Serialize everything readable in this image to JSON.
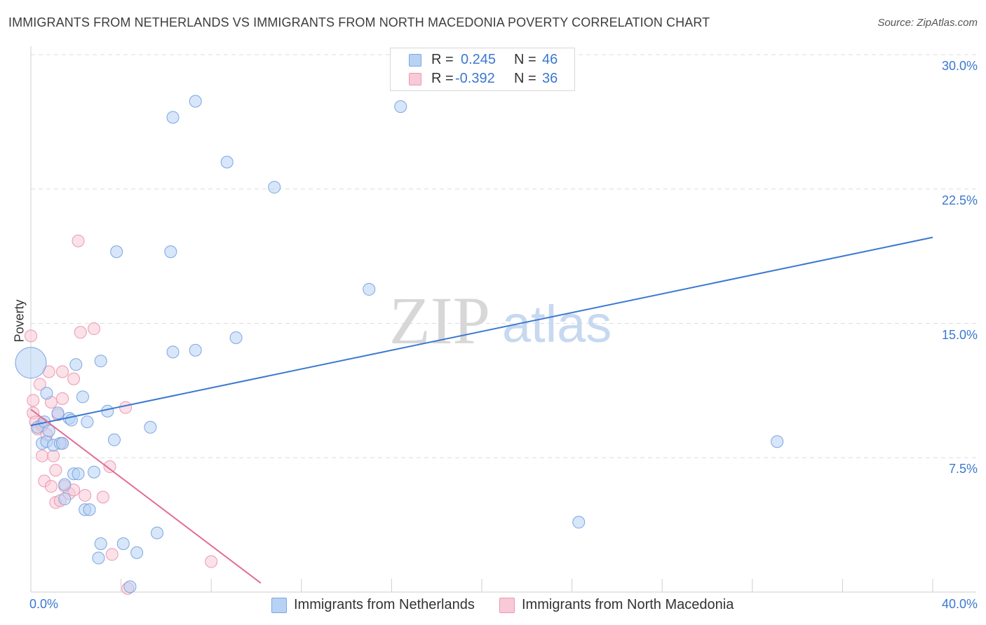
{
  "title": "IMMIGRANTS FROM NETHERLANDS VS IMMIGRANTS FROM NORTH MACEDONIA POVERTY CORRELATION CHART",
  "source": "Source: ZipAtlas.com",
  "watermark": {
    "zip": "ZIP",
    "atlas": "atlas"
  },
  "legend": {
    "r_label": "R =",
    "n_label": "N =",
    "series1": {
      "r": "0.245",
      "n": "46"
    },
    "series2": {
      "r": "-0.392",
      "n": "36"
    }
  },
  "colors": {
    "blue_fill": "#b8d2f4",
    "blue_stroke": "#7aa6e3",
    "blue_line": "#3b78d0",
    "pink_fill": "#f8c9d6",
    "pink_stroke": "#eb98b1",
    "pink_line": "#e36d96",
    "grid": "#dddddd",
    "tick_text": "#3b78d0"
  },
  "chart_data": {
    "type": "scatter",
    "title": "IMMIGRANTS FROM NETHERLANDS VS IMMIGRANTS FROM NORTH MACEDONIA POVERTY CORRELATION CHART",
    "xlabel": "",
    "ylabel": "Poverty",
    "xlim": [
      0,
      40
    ],
    "ylim": [
      0,
      30
    ],
    "x_tick_labels": [
      "0.0%",
      "40.0%"
    ],
    "y_ticks": [
      7.5,
      15.0,
      22.5,
      30.0
    ],
    "y_tick_labels": [
      "7.5%",
      "15.0%",
      "22.5%",
      "30.0%"
    ],
    "grid": true,
    "legend_position": "top-center",
    "series": [
      {
        "name": "Immigrants from Netherlands",
        "r": 0.245,
        "n": 46,
        "trendline": {
          "x": [
            0,
            40
          ],
          "y": [
            9.3,
            19.8
          ]
        },
        "points": [
          {
            "x": 0.0,
            "y": 12.8,
            "size": 2
          },
          {
            "x": 0.3,
            "y": 9.2,
            "size": 1
          },
          {
            "x": 0.5,
            "y": 8.3,
            "size": 1
          },
          {
            "x": 0.6,
            "y": 9.5,
            "size": 1
          },
          {
            "x": 0.7,
            "y": 8.4,
            "size": 1
          },
          {
            "x": 0.7,
            "y": 11.1,
            "size": 1
          },
          {
            "x": 0.8,
            "y": 9.0,
            "size": 1
          },
          {
            "x": 1.0,
            "y": 8.2,
            "size": 1
          },
          {
            "x": 1.2,
            "y": 10.0,
            "size": 1
          },
          {
            "x": 1.3,
            "y": 8.3,
            "size": 1
          },
          {
            "x": 1.4,
            "y": 8.3,
            "size": 1
          },
          {
            "x": 1.5,
            "y": 6.0,
            "size": 1
          },
          {
            "x": 1.5,
            "y": 5.2,
            "size": 1
          },
          {
            "x": 1.7,
            "y": 9.7,
            "size": 1
          },
          {
            "x": 1.8,
            "y": 9.6,
            "size": 1
          },
          {
            "x": 1.9,
            "y": 6.6,
            "size": 1
          },
          {
            "x": 2.0,
            "y": 12.7,
            "size": 1
          },
          {
            "x": 2.1,
            "y": 6.6,
            "size": 1
          },
          {
            "x": 2.3,
            "y": 10.9,
            "size": 1
          },
          {
            "x": 2.4,
            "y": 4.6,
            "size": 1
          },
          {
            "x": 2.6,
            "y": 4.6,
            "size": 1
          },
          {
            "x": 2.5,
            "y": 9.5,
            "size": 1
          },
          {
            "x": 2.8,
            "y": 6.7,
            "size": 1
          },
          {
            "x": 3.0,
            "y": 1.9,
            "size": 1
          },
          {
            "x": 3.1,
            "y": 12.9,
            "size": 1
          },
          {
            "x": 3.1,
            "y": 2.7,
            "size": 1
          },
          {
            "x": 3.4,
            "y": 10.1,
            "size": 1
          },
          {
            "x": 3.7,
            "y": 8.5,
            "size": 1
          },
          {
            "x": 3.8,
            "y": 19.0,
            "size": 1
          },
          {
            "x": 4.1,
            "y": 2.7,
            "size": 1
          },
          {
            "x": 4.4,
            "y": 0.3,
            "size": 1
          },
          {
            "x": 4.7,
            "y": 2.2,
            "size": 1
          },
          {
            "x": 5.3,
            "y": 9.2,
            "size": 1
          },
          {
            "x": 5.6,
            "y": 3.3,
            "size": 1
          },
          {
            "x": 6.3,
            "y": 26.5,
            "size": 1
          },
          {
            "x": 6.2,
            "y": 19.0,
            "size": 1
          },
          {
            "x": 6.3,
            "y": 13.4,
            "size": 1
          },
          {
            "x": 7.3,
            "y": 27.4,
            "size": 1
          },
          {
            "x": 7.3,
            "y": 13.5,
            "size": 1
          },
          {
            "x": 8.7,
            "y": 24.0,
            "size": 1
          },
          {
            "x": 9.1,
            "y": 14.2,
            "size": 1
          },
          {
            "x": 10.8,
            "y": 22.6,
            "size": 1
          },
          {
            "x": 15.0,
            "y": 16.9,
            "size": 1
          },
          {
            "x": 16.4,
            "y": 27.1,
            "size": 1
          },
          {
            "x": 24.3,
            "y": 3.9,
            "size": 1
          },
          {
            "x": 33.1,
            "y": 8.4,
            "size": 1
          }
        ]
      },
      {
        "name": "Immigrants from North Macedonia",
        "r": -0.392,
        "n": 36,
        "trendline": {
          "x": [
            0,
            10.2
          ],
          "y": [
            10.2,
            0.5
          ]
        },
        "points": [
          {
            "x": 0.0,
            "y": 14.3,
            "size": 1
          },
          {
            "x": 0.1,
            "y": 10.7,
            "size": 1
          },
          {
            "x": 0.1,
            "y": 10.0,
            "size": 1
          },
          {
            "x": 0.2,
            "y": 9.5,
            "size": 1
          },
          {
            "x": 0.3,
            "y": 9.1,
            "size": 1
          },
          {
            "x": 0.4,
            "y": 11.6,
            "size": 1
          },
          {
            "x": 0.5,
            "y": 9.4,
            "size": 1
          },
          {
            "x": 0.5,
            "y": 7.6,
            "size": 1
          },
          {
            "x": 0.6,
            "y": 6.2,
            "size": 1
          },
          {
            "x": 0.7,
            "y": 8.8,
            "size": 1
          },
          {
            "x": 0.8,
            "y": 12.3,
            "size": 1
          },
          {
            "x": 0.9,
            "y": 10.6,
            "size": 1
          },
          {
            "x": 0.9,
            "y": 5.9,
            "size": 1
          },
          {
            "x": 1.0,
            "y": 7.6,
            "size": 1
          },
          {
            "x": 1.1,
            "y": 6.8,
            "size": 1
          },
          {
            "x": 1.1,
            "y": 5.0,
            "size": 1
          },
          {
            "x": 1.2,
            "y": 9.9,
            "size": 1
          },
          {
            "x": 1.3,
            "y": 5.1,
            "size": 1
          },
          {
            "x": 1.4,
            "y": 8.3,
            "size": 1
          },
          {
            "x": 1.4,
            "y": 10.8,
            "size": 1
          },
          {
            "x": 1.4,
            "y": 12.3,
            "size": 1
          },
          {
            "x": 1.5,
            "y": 5.9,
            "size": 1
          },
          {
            "x": 1.7,
            "y": 5.5,
            "size": 1
          },
          {
            "x": 1.9,
            "y": 11.9,
            "size": 1
          },
          {
            "x": 1.9,
            "y": 5.7,
            "size": 1
          },
          {
            "x": 2.1,
            "y": 19.6,
            "size": 1
          },
          {
            "x": 2.2,
            "y": 14.5,
            "size": 1
          },
          {
            "x": 2.4,
            "y": 5.4,
            "size": 1
          },
          {
            "x": 2.8,
            "y": 14.7,
            "size": 1
          },
          {
            "x": 3.2,
            "y": 5.3,
            "size": 1
          },
          {
            "x": 3.5,
            "y": 7.0,
            "size": 1
          },
          {
            "x": 3.6,
            "y": 2.1,
            "size": 1
          },
          {
            "x": 4.2,
            "y": 10.3,
            "size": 1
          },
          {
            "x": 4.3,
            "y": 0.2,
            "size": 1
          },
          {
            "x": 8.0,
            "y": 1.7,
            "size": 1
          },
          {
            "x": 0.5,
            "y": 9.3,
            "size": 1
          }
        ]
      }
    ]
  }
}
